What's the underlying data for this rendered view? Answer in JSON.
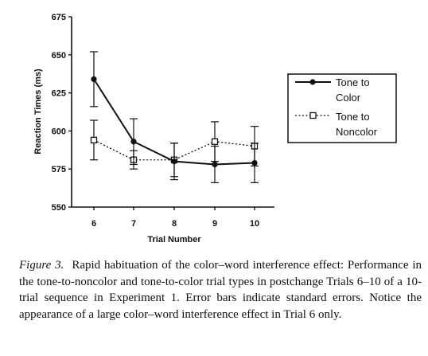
{
  "chart_data": {
    "type": "line",
    "title": "",
    "xlabel": "Trial Number",
    "ylabel": "Reaction Times (ms)",
    "categories": [
      "6",
      "7",
      "8",
      "9",
      "10"
    ],
    "ylim": [
      550,
      675
    ],
    "yticks": [
      "550",
      "575",
      "600",
      "625",
      "650",
      "675"
    ],
    "grid": false,
    "legend_position": "right",
    "series": [
      {
        "name": "Tone to Color",
        "style": "solid",
        "marker": "filled-circle",
        "values": [
          634,
          593,
          580,
          578,
          579
        ],
        "error": [
          18,
          15,
          12,
          12,
          13
        ]
      },
      {
        "name": "Tone to Noncolor",
        "style": "dotted",
        "marker": "open-square",
        "values": [
          594,
          581,
          581,
          593,
          590
        ],
        "error": [
          13,
          6,
          11,
          13,
          13
        ]
      }
    ]
  },
  "legend": {
    "items": [
      {
        "line1": "Tone to",
        "line2": "Color"
      },
      {
        "line1": "Tone to",
        "line2": "Noncolor"
      }
    ]
  },
  "caption": {
    "label": "Figure 3.",
    "text": "Rapid habituation of the color–word interference effect: Performance in the tone-to-noncolor and tone-to-color trial types in postchange Trials 6–10 of a 10-trial sequence in Experiment 1. Error bars indicate standard errors. Notice the appearance of a large color–word interference effect in Trial 6 only."
  },
  "colors": {
    "ink": "#111111",
    "background": "#ffffff"
  }
}
